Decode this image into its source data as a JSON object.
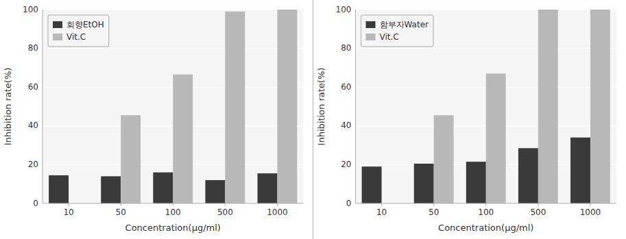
{
  "chart_data": [
    {
      "type": "bar",
      "categories": [
        "10",
        "50",
        "100",
        "500",
        "1000"
      ],
      "series": [
        {
          "name": "회향EtOH",
          "color": "#3a3a3a",
          "values": [
            14.5,
            14.0,
            16.0,
            12.0,
            15.5
          ]
        },
        {
          "name": "Vit.C",
          "color": "#b8b8b8",
          "values": [
            0,
            45.5,
            66.5,
            99.0,
            100.0
          ]
        }
      ],
      "xlabel": "Concentration(μg/ml)",
      "ylabel": "Inhibition rate(%)",
      "ylim": [
        0,
        100
      ],
      "yticks": [
        0,
        20,
        40,
        60,
        80,
        100
      ],
      "grid": true,
      "legend": "upper-left"
    },
    {
      "type": "bar",
      "categories": [
        "10",
        "50",
        "100",
        "500",
        "1000"
      ],
      "series": [
        {
          "name": "함부자Water",
          "color": "#3a3a3a",
          "values": [
            19.0,
            20.5,
            21.5,
            28.5,
            34.0
          ]
        },
        {
          "name": "Vit.C",
          "color": "#b8b8b8",
          "values": [
            0,
            45.5,
            67.0,
            100.0,
            100.0
          ]
        }
      ],
      "xlabel": "Concentration(μg/ml)",
      "ylabel": "Inhibition rate(%)",
      "ylim": [
        0,
        100
      ],
      "yticks": [
        0,
        20,
        40,
        60,
        80,
        100
      ],
      "grid": true,
      "legend": "upper-left"
    }
  ]
}
